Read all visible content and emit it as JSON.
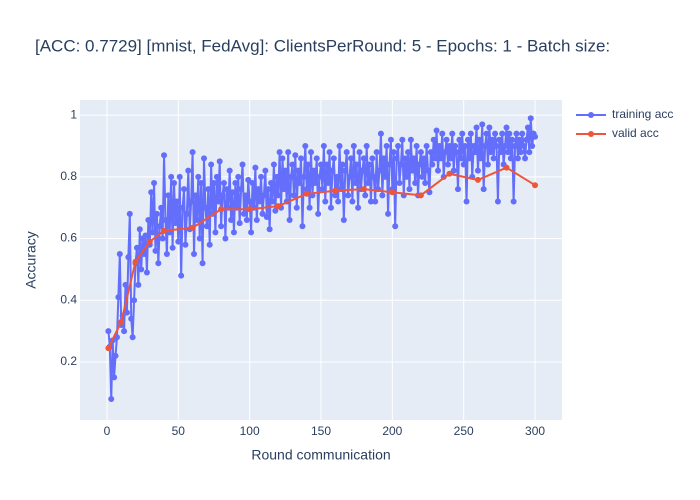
{
  "chart_data": {
    "type": "line",
    "title": "[ACC: 0.7729] [mnist, FedAvg]: ClientsPerRound: 5 - Epochs: 1 - Batch size:",
    "x_label": "Round communication",
    "y_label": "Accuracy",
    "xlim": [
      -18.9,
      318.9
    ],
    "xticks": [
      0,
      50,
      100,
      150,
      200,
      250,
      300
    ],
    "ylim": [
      0.012,
      1.049
    ],
    "yticks": [
      0.2,
      0.4,
      0.6,
      0.8,
      1
    ],
    "grid": true,
    "legend": "right",
    "series": [
      {
        "name": "training acc",
        "color": "#636efa",
        "x": [
          1,
          2,
          3,
          4,
          5,
          6,
          7,
          8,
          9,
          10,
          11,
          12,
          13,
          14,
          15,
          16,
          17,
          18,
          19,
          20,
          21,
          22,
          23,
          24,
          25,
          26,
          27,
          28,
          29,
          30,
          31,
          32,
          33,
          34,
          35,
          36,
          37,
          38,
          39,
          40,
          41,
          42,
          43,
          44,
          45,
          46,
          47,
          48,
          49,
          50,
          51,
          52,
          53,
          54,
          55,
          56,
          57,
          58,
          59,
          60,
          61,
          62,
          63,
          64,
          65,
          66,
          67,
          68,
          69,
          70,
          71,
          72,
          73,
          74,
          75,
          76,
          77,
          78,
          79,
          80,
          81,
          82,
          83,
          84,
          85,
          86,
          87,
          88,
          89,
          90,
          91,
          92,
          93,
          94,
          95,
          96,
          97,
          98,
          99,
          100,
          101,
          102,
          103,
          104,
          105,
          106,
          107,
          108,
          109,
          110,
          111,
          112,
          113,
          114,
          115,
          116,
          117,
          118,
          119,
          120,
          121,
          122,
          123,
          124,
          125,
          126,
          127,
          128,
          129,
          130,
          131,
          132,
          133,
          134,
          135,
          136,
          137,
          138,
          139,
          140,
          141,
          142,
          143,
          144,
          145,
          146,
          147,
          148,
          149,
          150,
          151,
          152,
          153,
          154,
          155,
          156,
          157,
          158,
          159,
          160,
          161,
          162,
          163,
          164,
          165,
          166,
          167,
          168,
          169,
          170,
          171,
          172,
          173,
          174,
          175,
          176,
          177,
          178,
          179,
          180,
          181,
          182,
          183,
          184,
          185,
          186,
          187,
          188,
          189,
          190,
          191,
          192,
          193,
          194,
          195,
          196,
          197,
          198,
          199,
          200,
          201,
          202,
          203,
          204,
          205,
          206,
          207,
          208,
          209,
          210,
          211,
          212,
          213,
          214,
          215,
          216,
          217,
          218,
          219,
          220,
          221,
          222,
          223,
          224,
          225,
          226,
          227,
          228,
          229,
          230,
          231,
          232,
          233,
          234,
          235,
          236,
          237,
          238,
          239,
          240,
          241,
          242,
          243,
          244,
          245,
          246,
          247,
          248,
          249,
          250,
          251,
          252,
          253,
          254,
          255,
          256,
          257,
          258,
          259,
          260,
          261,
          262,
          263,
          264,
          265,
          266,
          267,
          268,
          269,
          270,
          271,
          272,
          273,
          274,
          275,
          276,
          277,
          278,
          279,
          280,
          281,
          282,
          283,
          284,
          285,
          286,
          287,
          288,
          289,
          290,
          291,
          292,
          293,
          294,
          295,
          296,
          297,
          298,
          299,
          300
        ],
        "values": [
          0.3,
          0.25,
          0.08,
          0.27,
          0.15,
          0.22,
          0.28,
          0.41,
          0.55,
          0.32,
          0.35,
          0.3,
          0.45,
          0.36,
          0.54,
          0.68,
          0.34,
          0.28,
          0.4,
          0.52,
          0.57,
          0.45,
          0.63,
          0.5,
          0.6,
          0.55,
          0.61,
          0.49,
          0.66,
          0.58,
          0.75,
          0.62,
          0.78,
          0.56,
          0.68,
          0.52,
          0.64,
          0.7,
          0.6,
          0.87,
          0.66,
          0.55,
          0.74,
          0.62,
          0.8,
          0.57,
          0.78,
          0.65,
          0.72,
          0.59,
          0.8,
          0.48,
          0.7,
          0.76,
          0.58,
          0.68,
          0.82,
          0.63,
          0.72,
          0.88,
          0.55,
          0.74,
          0.66,
          0.8,
          0.6,
          0.78,
          0.52,
          0.86,
          0.7,
          0.64,
          0.76,
          0.58,
          0.84,
          0.68,
          0.78,
          0.62,
          0.8,
          0.72,
          0.85,
          0.64,
          0.74,
          0.78,
          0.6,
          0.76,
          0.7,
          0.82,
          0.66,
          0.75,
          0.62,
          0.78,
          0.7,
          0.8,
          0.65,
          0.76,
          0.84,
          0.68,
          0.74,
          0.66,
          0.79,
          0.72,
          0.62,
          0.78,
          0.7,
          0.83,
          0.66,
          0.76,
          0.72,
          0.8,
          0.68,
          0.74,
          0.82,
          0.67,
          0.76,
          0.63,
          0.78,
          0.72,
          0.84,
          0.69,
          0.8,
          0.74,
          0.88,
          0.7,
          0.86,
          0.76,
          0.82,
          0.72,
          0.88,
          0.66,
          0.8,
          0.84,
          0.74,
          0.87,
          0.7,
          0.82,
          0.78,
          0.86,
          0.64,
          0.8,
          0.9,
          0.76,
          0.84,
          0.7,
          0.88,
          0.74,
          0.82,
          0.78,
          0.86,
          0.68,
          0.8,
          0.84,
          0.76,
          0.9,
          0.72,
          0.84,
          0.78,
          0.88,
          0.7,
          0.82,
          0.86,
          0.74,
          0.8,
          0.72,
          0.9,
          0.76,
          0.84,
          0.66,
          0.82,
          0.88,
          0.74,
          0.8,
          0.86,
          0.72,
          0.9,
          0.78,
          0.84,
          0.7,
          0.88,
          0.76,
          0.82,
          0.86,
          0.74,
          0.9,
          0.78,
          0.84,
          0.72,
          0.86,
          0.8,
          0.72,
          0.88,
          0.76,
          0.82,
          0.94,
          0.74,
          0.86,
          0.8,
          0.9,
          0.68,
          0.84,
          0.92,
          0.76,
          0.88,
          0.64,
          0.86,
          0.9,
          0.78,
          0.84,
          0.92,
          0.74,
          0.86,
          0.8,
          0.88,
          0.76,
          0.92,
          0.82,
          0.86,
          0.78,
          0.9,
          0.74,
          0.84,
          0.88,
          0.8,
          0.86,
          0.78,
          0.9,
          0.82,
          0.75,
          0.88,
          0.84,
          0.92,
          0.86,
          0.95,
          0.82,
          0.9,
          0.86,
          0.94,
          0.8,
          0.88,
          0.92,
          0.84,
          0.9,
          0.86,
          0.94,
          0.82,
          0.9,
          0.88,
          0.76,
          0.92,
          0.86,
          0.94,
          0.84,
          0.9,
          0.72,
          0.92,
          0.86,
          0.94,
          0.8,
          0.9,
          0.88,
          0.96,
          0.82,
          0.92,
          0.86,
          0.97,
          0.76,
          0.9,
          0.94,
          0.84,
          0.96,
          0.88,
          0.92,
          0.86,
          0.94,
          0.9,
          0.72,
          0.92,
          0.88,
          0.94,
          0.84,
          0.9,
          0.96,
          0.88,
          0.94,
          0.86,
          0.92,
          0.72,
          0.9,
          0.94,
          0.86,
          0.92,
          0.88,
          0.94,
          0.9,
          0.86,
          0.92,
          0.96,
          0.88,
          0.99,
          0.9,
          0.94,
          0.93
        ]
      },
      {
        "name": "valid acc",
        "color": "#ef553b",
        "x": [
          1,
          10,
          20,
          30,
          40,
          60,
          80,
          100,
          120,
          140,
          160,
          180,
          200,
          220,
          240,
          260,
          280,
          300
        ],
        "values": [
          0.245,
          0.33,
          0.525,
          0.59,
          0.625,
          0.635,
          0.695,
          0.695,
          0.705,
          0.745,
          0.755,
          0.76,
          0.75,
          0.74,
          0.81,
          0.79,
          0.83,
          0.7729
        ]
      }
    ]
  }
}
